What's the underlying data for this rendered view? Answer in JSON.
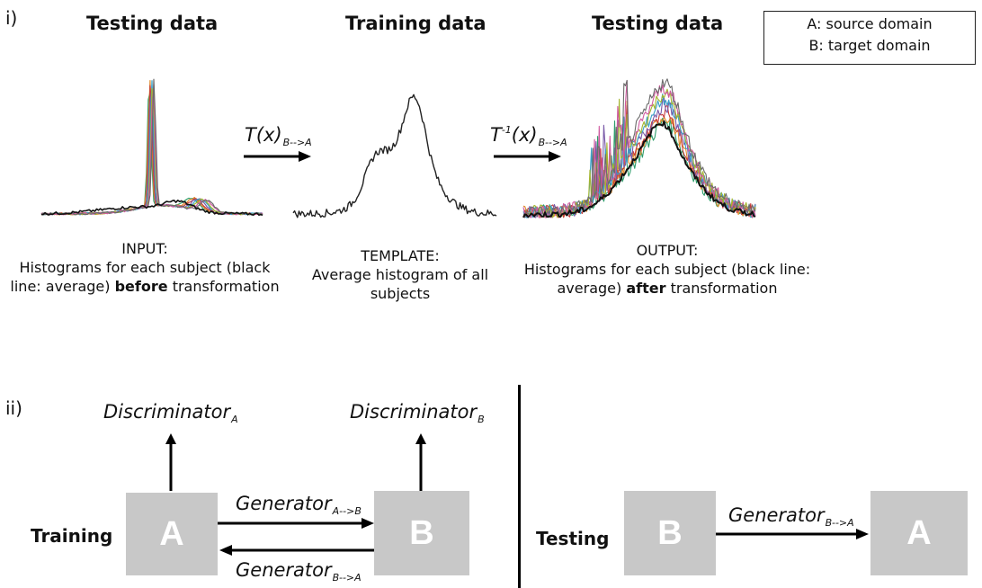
{
  "section_i": "i)",
  "section_ii": "ii)",
  "titles": {
    "left": "Testing data",
    "middle": "Training data",
    "right": "Testing data"
  },
  "legend": {
    "line1": "A: source domain",
    "line2": "B: target domain"
  },
  "transforms": {
    "forward": {
      "main": "T(x)",
      "sub": "B-->A"
    },
    "inverse": {
      "main_pre": "T",
      "sup": "-1",
      "main_post": "(x)",
      "sub": "B-->A"
    }
  },
  "captions": {
    "input": {
      "line1": "INPUT:",
      "line2": "Histograms for each subject (black",
      "line3_pre": "line: average)",
      "line3_bold": "before",
      "line3_post": "transformation"
    },
    "template": {
      "line1": "TEMPLATE:",
      "line2": "Average histogram of all",
      "line3": "subjects"
    },
    "output": {
      "line1": "OUTPUT:",
      "line2": "Histograms for each subject (black line:",
      "line3_pre": "average)",
      "line3_bold": "after",
      "line3_post": "transformation"
    }
  },
  "gan": {
    "disc_a": {
      "main": "Discriminator",
      "sub": "A"
    },
    "disc_b": {
      "main": "Discriminator",
      "sub": "B"
    },
    "gen_ab": {
      "main": "Generator",
      "sub": "A-->B"
    },
    "gen_ba": {
      "main": "Generator",
      "sub": "B-->A"
    },
    "training_label": "Training",
    "testing_label": "Testing",
    "box_a": "A",
    "box_b": "B",
    "test_gen": {
      "main": "Generator",
      "sub": "B-->A"
    },
    "test_box_b": "B",
    "test_box_a": "A"
  },
  "colors": {
    "series": [
      "#2e9e6b",
      "#e08a2a",
      "#c63b3b",
      "#7a5aa8",
      "#3aa0c8",
      "#a4b52e",
      "#d05aa0",
      "#6b6b6b"
    ],
    "average": "#111111",
    "box_fill": "#c8c8c8"
  }
}
